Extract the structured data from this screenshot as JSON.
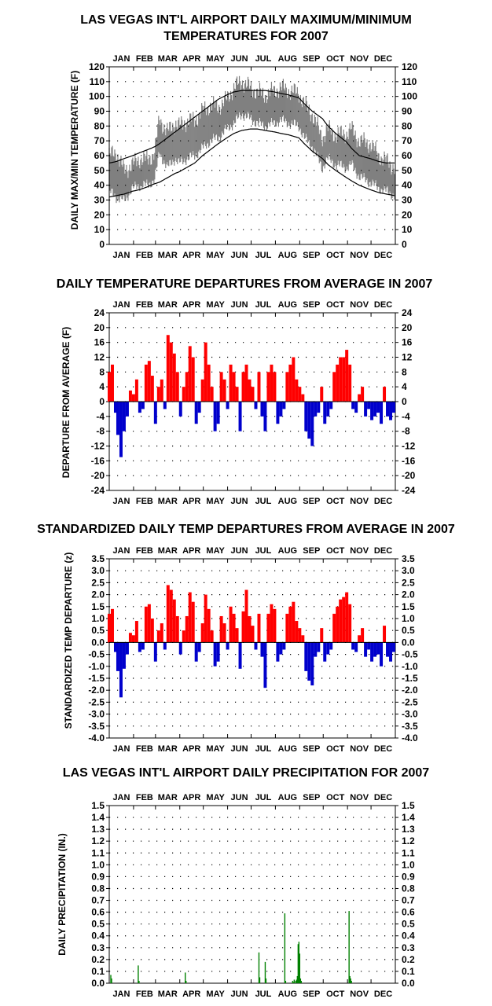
{
  "months": [
    "JAN",
    "FEB",
    "MAR",
    "APR",
    "MAY",
    "JUN",
    "JUL",
    "AUG",
    "SEP",
    "OCT",
    "NOV",
    "DEC"
  ],
  "colors": {
    "gray_band": "#808080",
    "positive": "#ff0000",
    "negative": "#0000cc",
    "precip": "#008000",
    "axis": "#000000"
  },
  "chart_data": [
    {
      "type": "area",
      "title": "LAS VEGAS INT'L AIRPORT DAILY MAXIMUM/MINIMUM TEMPERATURES FOR 2007",
      "ylabel": "DAILY MAX/MIN TEMPERATURE (F)",
      "ylim": [
        0,
        120
      ],
      "yticks": [
        "0",
        "10",
        "20",
        "30",
        "40",
        "50",
        "60",
        "70",
        "80",
        "90",
        "100",
        "110",
        "120"
      ],
      "grid": true,
      "x_days": [
        1,
        10,
        20,
        31,
        40,
        50,
        59,
        65,
        75,
        85,
        90,
        100,
        110,
        120,
        130,
        140,
        151,
        160,
        170,
        181,
        190,
        200,
        212,
        220,
        230,
        243,
        250,
        260,
        273,
        280,
        290,
        304,
        310,
        320,
        334,
        345,
        355,
        365
      ],
      "series": [
        {
          "name": "",
          "role": "observed_max",
          "values": [
            60,
            62,
            50,
            54,
            58,
            57,
            62,
            85,
            76,
            82,
            80,
            83,
            84,
            90,
            94,
            93,
            98,
            106,
            110,
            106,
            103,
            101,
            104,
            106,
            104,
            102,
            95,
            88,
            72,
            78,
            74,
            75,
            78,
            70,
            68,
            60,
            56,
            52
          ]
        },
        {
          "name": "",
          "role": "observed_min",
          "values": [
            36,
            32,
            30,
            38,
            40,
            40,
            44,
            62,
            52,
            58,
            55,
            58,
            60,
            65,
            70,
            72,
            78,
            82,
            88,
            85,
            82,
            80,
            82,
            84,
            82,
            80,
            72,
            66,
            52,
            58,
            54,
            52,
            54,
            46,
            42,
            38,
            36,
            33
          ]
        },
        {
          "name": "",
          "role": "normal_max",
          "values": [
            55,
            56,
            58,
            60,
            62,
            64,
            66,
            68,
            72,
            76,
            78,
            82,
            86,
            90,
            94,
            98,
            101,
            103,
            104,
            104,
            104,
            104,
            103,
            102,
            101,
            99,
            95,
            90,
            85,
            80,
            75,
            69,
            65,
            60,
            58,
            56,
            55,
            55
          ]
        },
        {
          "name": "",
          "role": "normal_min",
          "values": [
            32,
            33,
            34,
            36,
            37,
            39,
            41,
            42,
            45,
            48,
            49,
            52,
            55,
            60,
            64,
            68,
            72,
            75,
            77,
            78,
            78,
            77,
            76,
            75,
            74,
            72,
            68,
            63,
            58,
            54,
            50,
            45,
            43,
            40,
            37,
            35,
            34,
            33
          ]
        }
      ]
    },
    {
      "type": "bar",
      "title": "DAILY TEMPERATURE DEPARTURES FROM AVERAGE IN 2007",
      "ylabel": "DEPARTURE FROM AVERAGE (F)",
      "ylim": [
        -24,
        24
      ],
      "yticks": [
        "-24",
        "-20",
        "-16",
        "-12",
        "-8",
        "-4",
        "0",
        "4",
        "8",
        "12",
        "16",
        "20",
        "24"
      ],
      "grid": true,
      "x_days": [
        1,
        5,
        9,
        12,
        16,
        20,
        24,
        28,
        32,
        36,
        40,
        44,
        48,
        52,
        56,
        60,
        64,
        68,
        72,
        76,
        80,
        84,
        88,
        92,
        96,
        100,
        104,
        108,
        112,
        116,
        120,
        124,
        128,
        132,
        136,
        140,
        144,
        148,
        152,
        156,
        160,
        164,
        168,
        172,
        176,
        180,
        184,
        188,
        192,
        196,
        200,
        204,
        208,
        212,
        216,
        220,
        224,
        228,
        232,
        236,
        240,
        244,
        248,
        252,
        256,
        260,
        264,
        268,
        272,
        276,
        280,
        284,
        288,
        292,
        296,
        300,
        304,
        308,
        312,
        316,
        320,
        324,
        328,
        332,
        336,
        340,
        344,
        348,
        352,
        356,
        360,
        364
      ],
      "values": [
        8,
        10,
        -3,
        -9,
        -15,
        -8,
        -4,
        3,
        2,
        6,
        -3,
        -2,
        10,
        11,
        7,
        -6,
        4,
        6,
        -2,
        18,
        16,
        13,
        8,
        -4,
        4,
        8,
        15,
        12,
        -6,
        -3,
        6,
        16,
        10,
        4,
        -8,
        -6,
        8,
        6,
        -2,
        10,
        8,
        4,
        -8,
        8,
        10,
        6,
        4,
        -2,
        8,
        -4,
        -8,
        8,
        10,
        8,
        -6,
        -4,
        -2,
        8,
        10,
        12,
        6,
        4,
        2,
        -8,
        -10,
        -12,
        -4,
        -3,
        4,
        -6,
        -4,
        -2,
        8,
        10,
        12,
        12,
        14,
        10,
        -2,
        -3,
        2,
        4,
        -4,
        -2,
        -5,
        -4,
        -3,
        -6,
        4,
        -4,
        -5,
        -3
      ],
      "series_colors": {
        "positive": "red",
        "negative": "blue"
      }
    },
    {
      "type": "bar",
      "title": "STANDARDIZED DAILY TEMP DEPARTURES FROM AVERAGE IN 2007",
      "ylabel": "STANDARDIZED TEMP DEPARTURE (z)",
      "ylim": [
        -4.0,
        3.5
      ],
      "yticks": [
        "-4.0",
        "-3.5",
        "-3.0",
        "-2.5",
        "-2.0",
        "-1.5",
        "-1.0",
        "-0.5",
        "0.0",
        "0.5",
        "1.0",
        "1.5",
        "2.0",
        "2.5",
        "3.0",
        "3.5"
      ],
      "grid": true,
      "x_days": [
        1,
        5,
        9,
        12,
        16,
        20,
        24,
        28,
        32,
        36,
        40,
        44,
        48,
        52,
        56,
        60,
        64,
        68,
        72,
        76,
        80,
        84,
        88,
        92,
        96,
        100,
        104,
        108,
        112,
        116,
        120,
        124,
        128,
        132,
        136,
        140,
        144,
        148,
        152,
        156,
        160,
        164,
        168,
        172,
        176,
        180,
        184,
        188,
        192,
        196,
        200,
        204,
        208,
        212,
        216,
        220,
        224,
        228,
        232,
        236,
        240,
        244,
        248,
        252,
        256,
        260,
        264,
        268,
        272,
        276,
        280,
        284,
        288,
        292,
        296,
        300,
        304,
        308,
        312,
        316,
        320,
        324,
        328,
        332,
        336,
        340,
        344,
        348,
        352,
        356,
        360,
        364
      ],
      "values": [
        1.2,
        1.4,
        -0.4,
        -1.2,
        -2.3,
        -1.1,
        -0.5,
        0.4,
        0.3,
        0.9,
        -0.4,
        -0.3,
        1.5,
        1.6,
        1.0,
        -0.8,
        0.5,
        0.8,
        -0.3,
        2.4,
        2.2,
        1.8,
        1.1,
        -0.5,
        0.5,
        1.1,
        2.1,
        1.7,
        -0.8,
        -0.4,
        0.8,
        2.0,
        1.4,
        0.5,
        -1.0,
        -0.8,
        1.1,
        0.8,
        -0.3,
        1.5,
        1.2,
        0.6,
        -1.1,
        1.3,
        2.2,
        1.1,
        0.7,
        -0.3,
        1.2,
        -0.6,
        -1.9,
        1.2,
        1.6,
        1.4,
        -0.8,
        -0.5,
        -0.3,
        1.2,
        1.5,
        1.7,
        0.9,
        0.6,
        0.3,
        -1.2,
        -1.6,
        -1.8,
        -0.6,
        -0.4,
        0.6,
        -0.8,
        -0.5,
        -0.3,
        1.2,
        1.5,
        1.8,
        1.9,
        2.1,
        1.6,
        -0.3,
        -0.4,
        0.3,
        0.6,
        -0.6,
        -0.3,
        -0.8,
        -0.6,
        -0.5,
        -1.0,
        0.7,
        -0.6,
        -0.8,
        -0.4
      ],
      "series_colors": {
        "positive": "red",
        "negative": "blue"
      }
    },
    {
      "type": "bar",
      "title": "LAS VEGAS INT'L AIRPORT DAILY PRECIPITATION FOR 2007",
      "ylabel": "DAILY PRECIPITATION (IN.)",
      "ylim": [
        0,
        1.5
      ],
      "yticks": [
        "0.0",
        "0.1",
        "0.2",
        "0.3",
        "0.4",
        "0.5",
        "0.6",
        "0.7",
        "0.8",
        "0.9",
        "1.0",
        "1.1",
        "1.2",
        "1.3",
        "1.4",
        "1.5"
      ],
      "grid": true,
      "x_days": [
        3,
        4,
        38,
        39,
        98,
        99,
        192,
        193,
        200,
        201,
        225,
        226,
        235,
        236,
        237,
        239,
        240,
        241,
        242,
        243,
        244,
        245,
        246,
        307,
        308,
        309,
        310
      ],
      "values": [
        0.07,
        0.04,
        0.15,
        0.02,
        0.09,
        0.02,
        0.26,
        0.05,
        0.18,
        0.04,
        0.59,
        0.02,
        0.02,
        0.01,
        0.03,
        0.02,
        0.03,
        0.06,
        0.33,
        0.35,
        0.25,
        0.04,
        0.02,
        0.61,
        0.06,
        0.04,
        0.02
      ],
      "series_colors": {
        "bars": "green"
      }
    }
  ]
}
